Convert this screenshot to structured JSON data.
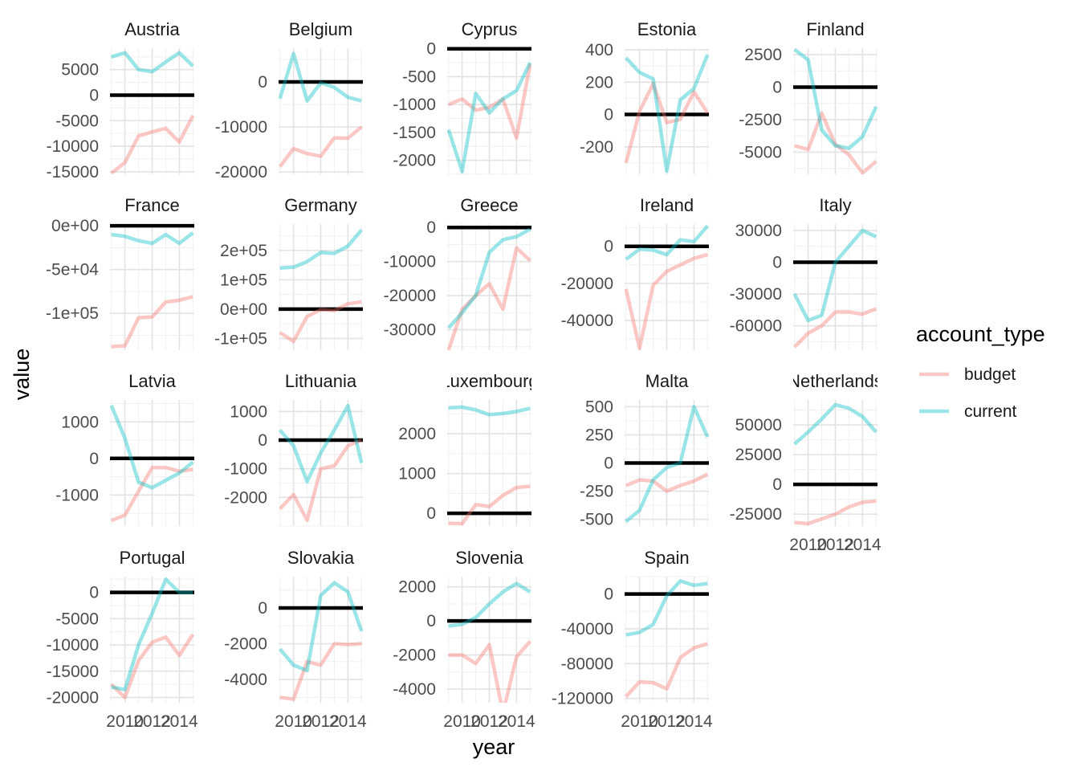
{
  "chart_data": {
    "type": "line",
    "facet_by": "country",
    "xlabel": "year",
    "ylabel": "value",
    "legend": {
      "title": "account_type",
      "placement": "right"
    },
    "colors": {
      "budget": "#F8766D",
      "current": "#00BFC4",
      "zero_line": "#000000",
      "grid": "#e3e3e3"
    },
    "x": [
      2009,
      2010,
      2011,
      2012,
      2013,
      2014,
      2015
    ],
    "x_ticks": [
      2010,
      2012,
      2014
    ],
    "x_tick_labels": [
      "2010",
      "2012",
      "2014"
    ],
    "xlim": [
      2008.9,
      2015.1
    ],
    "hline": 0,
    "grid": true,
    "facets": [
      {
        "country": "Austria",
        "ylim": [
          -15500,
          9200
        ],
        "y_ticks": [
          5000,
          0,
          -5000,
          -10000,
          -15000
        ],
        "y_tick_labels": [
          "5000",
          "0",
          "-5000",
          "-10000",
          "-15000"
        ],
        "series": [
          {
            "name": "budget",
            "values": [
              -15300,
              -13200,
              -8000,
              -7200,
              -6500,
              -9200,
              -4000
            ]
          },
          {
            "name": "current",
            "values": [
              7500,
              8300,
              5000,
              4600,
              6500,
              8300,
              5700
            ]
          }
        ]
      },
      {
        "country": "Belgium",
        "ylim": [
          -20500,
          7500
        ],
        "y_ticks": [
          0,
          -10000,
          -20000
        ],
        "y_tick_labels": [
          "0",
          "-10000",
          "-20000"
        ],
        "series": [
          {
            "name": "budget",
            "values": [
              -18800,
              -14800,
              -15900,
              -16500,
              -12400,
              -12500,
              -10000
            ]
          },
          {
            "name": "current",
            "values": [
              -3700,
              6300,
              -4200,
              -200,
              -1200,
              -3400,
              -4200
            ]
          }
        ]
      },
      {
        "country": "Cyprus",
        "ylim": [
          -2250,
          10
        ],
        "y_ticks": [
          0,
          -500,
          -1000,
          -1500,
          -2000
        ],
        "y_tick_labels": [
          "0",
          "-500",
          "-1000",
          "-1500",
          "-2000"
        ],
        "series": [
          {
            "name": "budget",
            "values": [
              -1000,
              -900,
              -1100,
              -1050,
              -900,
              -1600,
              -270
            ]
          },
          {
            "name": "current",
            "values": [
              -1450,
              -2200,
              -800,
              -1150,
              -900,
              -750,
              -250
            ]
          }
        ]
      },
      {
        "country": "Estonia",
        "ylim": [
          -370,
          410
        ],
        "y_ticks": [
          400,
          200,
          0,
          -200
        ],
        "y_tick_labels": [
          "400",
          "200",
          "0",
          "-200"
        ],
        "series": [
          {
            "name": "budget",
            "values": [
              -300,
              20,
              190,
              -50,
              -30,
              140,
              10
            ]
          },
          {
            "name": "current",
            "values": [
              350,
              260,
              220,
              -350,
              90,
              160,
              370
            ]
          }
        ]
      },
      {
        "country": "Finland",
        "ylim": [
          -6700,
          3000
        ],
        "y_ticks": [
          2500,
          0,
          -2500,
          -5000
        ],
        "y_tick_labels": [
          "2500",
          "0",
          "-2500",
          "-5000"
        ],
        "series": [
          {
            "name": "budget",
            "values": [
              -4500,
              -4800,
              -2000,
              -4400,
              -5200,
              -6600,
              -5700
            ]
          },
          {
            "name": "current",
            "values": [
              2900,
              2100,
              -3300,
              -4500,
              -4700,
              -3800,
              -1500
            ]
          }
        ]
      },
      {
        "country": "France",
        "ylim": [
          -142000,
          2000
        ],
        "y_ticks": [
          0,
          -50000,
          -100000
        ],
        "y_tick_labels": [
          "0e+00",
          "-5e+04",
          "-1e+05"
        ],
        "series": [
          {
            "name": "budget",
            "values": [
              -138000,
              -137000,
              -105000,
              -104000,
              -87000,
              -85000,
              -81000
            ]
          },
          {
            "name": "current",
            "values": [
              -10000,
              -12000,
              -17000,
              -20000,
              -10000,
              -20000,
              -8000
            ]
          }
        ]
      },
      {
        "country": "Germany",
        "ylim": [
          -140000,
          290000
        ],
        "y_ticks": [
          200000,
          100000,
          0,
          -100000
        ],
        "y_tick_labels": [
          "2e+05",
          "1e+05",
          "0e+00",
          "-1e+05"
        ],
        "series": [
          {
            "name": "budget",
            "values": [
              -80000,
              -110000,
              -25000,
              -2000,
              -5000,
              18000,
              25000
            ]
          },
          {
            "name": "current",
            "values": [
              140000,
              143000,
              162000,
              193000,
              190000,
              215000,
              270000
            ]
          }
        ]
      },
      {
        "country": "Greece",
        "ylim": [
          -36000,
          1000
        ],
        "y_ticks": [
          0,
          -10000,
          -20000,
          -30000
        ],
        "y_tick_labels": [
          "0",
          "-10000",
          "-20000",
          "-30000"
        ],
        "series": [
          {
            "name": "budget",
            "values": [
              -36000,
              -24000,
              -20000,
              -16500,
              -24000,
              -6000,
              -9700
            ]
          },
          {
            "name": "current",
            "values": [
              -29500,
              -25000,
              -20000,
              -7300,
              -3600,
              -2700,
              -500
            ]
          }
        ]
      },
      {
        "country": "Ireland",
        "ylim": [
          -56000,
          12000
        ],
        "y_ticks": [
          0,
          -20000,
          -40000
        ],
        "y_tick_labels": [
          "0",
          "-20000",
          "-40000"
        ],
        "series": [
          {
            "name": "budget",
            "values": [
              -23000,
              -55000,
              -21000,
              -13500,
              -10000,
              -6500,
              -4500
            ]
          },
          {
            "name": "current",
            "values": [
              -7000,
              -1500,
              -2000,
              -4500,
              3500,
              2500,
              11000
            ]
          }
        ]
      },
      {
        "country": "Italy",
        "ylim": [
          -83000,
          36000
        ],
        "y_ticks": [
          30000,
          0,
          -30000,
          -60000
        ],
        "y_tick_labels": [
          "30000",
          "0",
          "-30000",
          "-60000"
        ],
        "series": [
          {
            "name": "budget",
            "values": [
              -80000,
              -67000,
              -60000,
              -47000,
              -47000,
              -49000,
              -44000
            ]
          },
          {
            "name": "current",
            "values": [
              -30000,
              -55000,
              -50000,
              0,
              15000,
              30000,
              24000
            ]
          }
        ]
      },
      {
        "country": "Latvia",
        "ylim": [
          -1850,
          1600
        ],
        "y_ticks": [
          1000,
          0,
          -1000
        ],
        "y_tick_labels": [
          "1000",
          "0",
          "-1000"
        ],
        "series": [
          {
            "name": "budget",
            "values": [
              -1700,
              -1550,
              -900,
              -250,
              -250,
              -350,
              -300
            ]
          },
          {
            "name": "current",
            "values": [
              1450,
              550,
              -650,
              -800,
              -600,
              -400,
              -100
            ]
          }
        ]
      },
      {
        "country": "Lithuania",
        "ylim": [
          -3000,
          1400
        ],
        "y_ticks": [
          1000,
          0,
          -1000,
          -2000
        ],
        "y_tick_labels": [
          "1000",
          "0",
          "-1000",
          "-2000"
        ],
        "series": [
          {
            "name": "budget",
            "values": [
              -2400,
              -1900,
              -2800,
              -1000,
              -900,
              -200,
              0
            ]
          },
          {
            "name": "current",
            "values": [
              350,
              -200,
              -1450,
              -450,
              350,
              1200,
              -800
            ]
          }
        ]
      },
      {
        "country": "Luxembourg",
        "ylim": [
          -320,
          2850
        ],
        "y_ticks": [
          2000,
          1000,
          0
        ],
        "y_tick_labels": [
          "2000",
          "1000",
          "0"
        ],
        "series": [
          {
            "name": "budget",
            "values": [
              -250,
              -260,
              220,
              170,
              450,
              650,
              680
            ]
          },
          {
            "name": "current",
            "values": [
              2650,
              2670,
              2600,
              2480,
              2510,
              2560,
              2640
            ]
          }
        ]
      },
      {
        "country": "Malta",
        "ylim": [
          -560,
          560
        ],
        "y_ticks": [
          500,
          250,
          0,
          -250,
          -500
        ],
        "y_tick_labels": [
          "500",
          "250",
          "0",
          "-250",
          "-500"
        ],
        "series": [
          {
            "name": "budget",
            "values": [
              -200,
              -150,
              -160,
              -250,
              -200,
              -160,
              -100
            ]
          },
          {
            "name": "current",
            "values": [
              -520,
              -420,
              -150,
              -40,
              0,
              500,
              230
            ]
          }
        ]
      },
      {
        "country": "Netherlands",
        "ylim": [
          -35000,
          71000
        ],
        "y_ticks": [
          50000,
          25000,
          0,
          -25000
        ],
        "y_tick_labels": [
          "50000",
          "25000",
          "0",
          "-25000"
        ],
        "series": [
          {
            "name": "budget",
            "values": [
              -32000,
              -33000,
              -29000,
              -25000,
              -19000,
              -15000,
              -14000
            ]
          },
          {
            "name": "current",
            "values": [
              34000,
              44000,
              55000,
              67000,
              64000,
              57000,
              44000
            ]
          }
        ]
      },
      {
        "country": "Portugal",
        "ylim": [
          -21000,
          3000
        ],
        "y_ticks": [
          0,
          -5000,
          -10000,
          -15000,
          -20000
        ],
        "y_tick_labels": [
          "0",
          "-5000",
          "-10000",
          "-15000",
          "-20000"
        ],
        "series": [
          {
            "name": "budget",
            "values": [
              -17500,
              -20000,
              -13000,
              -9500,
              -8500,
              -12000,
              -8000
            ]
          },
          {
            "name": "current",
            "values": [
              -18000,
              -18500,
              -10000,
              -4000,
              2500,
              0,
              0
            ]
          }
        ]
      },
      {
        "country": "Slovakia",
        "ylim": [
          -5300,
          1750
        ],
        "y_ticks": [
          0,
          -2000,
          -4000
        ],
        "y_tick_labels": [
          "0",
          "-2000",
          "-4000"
        ],
        "series": [
          {
            "name": "budget",
            "values": [
              -5000,
              -5100,
              -3000,
              -3200,
              -2000,
              -2050,
              -2000
            ]
          },
          {
            "name": "current",
            "values": [
              -2300,
              -3200,
              -3500,
              700,
              1400,
              900,
              -1300
            ]
          }
        ]
      },
      {
        "country": "Slovenia",
        "ylim": [
          -4800,
          2600
        ],
        "y_ticks": [
          2000,
          0,
          -2000,
          -4000
        ],
        "y_tick_labels": [
          "2000",
          "0",
          "-2000",
          "-4000"
        ],
        "series": [
          {
            "name": "budget",
            "values": [
              -2000,
              -2000,
              -2500,
              -1400,
              -5400,
              -2100,
              -1200
            ]
          },
          {
            "name": "current",
            "values": [
              -300,
              -200,
              200,
              1000,
              1700,
              2200,
              1700
            ]
          }
        ]
      },
      {
        "country": "Spain",
        "ylim": [
          -125000,
          20000
        ],
        "y_ticks": [
          0,
          -40000,
          -80000,
          -120000
        ],
        "y_tick_labels": [
          "0",
          "-40000",
          "-80000",
          "-120000"
        ],
        "series": [
          {
            "name": "budget",
            "values": [
              -118000,
              -101000,
              -102000,
              -109000,
              -73000,
              -62000,
              -57000
            ]
          },
          {
            "name": "current",
            "values": [
              -47000,
              -44000,
              -35000,
              -2000,
              15000,
              10000,
              12000
            ]
          }
        ]
      }
    ]
  }
}
